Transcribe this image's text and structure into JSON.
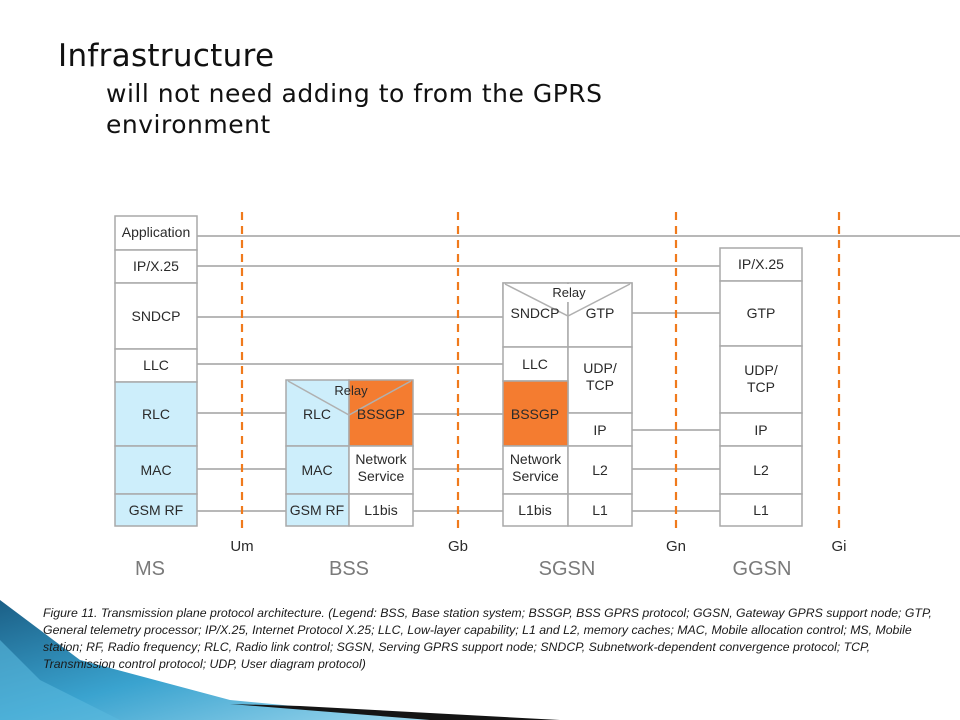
{
  "slide": {
    "title": "Infrastructure",
    "subtitle": "will not need adding to from the GPRS environment"
  },
  "colors": {
    "blue_cell": "#cdeefb",
    "orange_cell": "#f47c30",
    "divider": "#f07a1c",
    "border": "#a9a9a9",
    "line": "#b8b8b8"
  },
  "diagram": {
    "stacks": {
      "ms": {
        "label": "MS",
        "layers": [
          "Application",
          "IP/X.25",
          "SNDCP",
          "LLC",
          "RLC",
          "MAC",
          "GSM RF"
        ]
      },
      "bss": {
        "label": "BSS",
        "relay": "Relay",
        "left": [
          "RLC",
          "MAC",
          "GSM RF"
        ],
        "right": [
          "BSSGP",
          "Network Service",
          "L1bis"
        ]
      },
      "sgsn": {
        "label": "SGSN",
        "relay": "Relay",
        "left": [
          "SNDCP",
          "LLC",
          "BSSGP",
          "Network Service",
          "L1bis"
        ],
        "right": [
          "GTP",
          "UDP/ TCP",
          "IP",
          "L2",
          "L1"
        ]
      },
      "ggsn": {
        "label": "GGSN",
        "layers": [
          "IP/X.25",
          "GTP",
          "UDP/ TCP",
          "IP",
          "L2",
          "L1"
        ]
      }
    },
    "interfaces": [
      "Um",
      "Gb",
      "Gn",
      "Gi"
    ]
  },
  "caption": "Figure 11. Transmission plane protocol architecture. (Legend: BSS, Base station system; BSSGP, BSS GPRS protocol; GGSN, Gateway GPRS support node; GTP, General telemetry processor; IP/X.25, Internet Protocol X.25; LLC, Low-layer capability; L1 and L2, memory caches; MAC, Mobile allocation control; MS, Mobile station; RF, Radio frequency; RLC, Radio link control; SGSN, Serving GPRS support node; SNDCP, Subnetwork-dependent convergence protocol; TCP, Transmission control protocol; UDP, User diagram protocol)"
}
